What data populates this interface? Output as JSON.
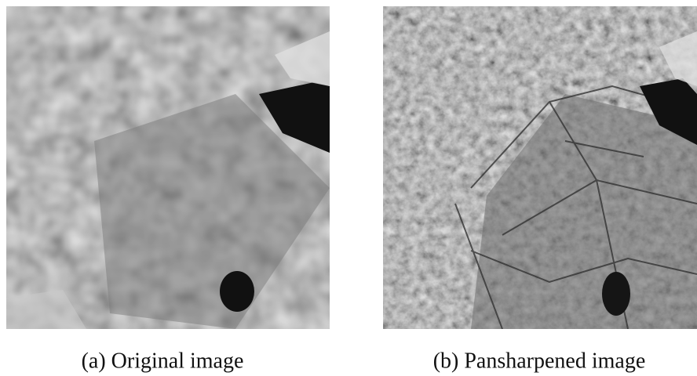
{
  "figure": {
    "panels": [
      {
        "caption": "(a) Original image"
      },
      {
        "caption": "(b) Pansharpened image"
      }
    ]
  }
}
